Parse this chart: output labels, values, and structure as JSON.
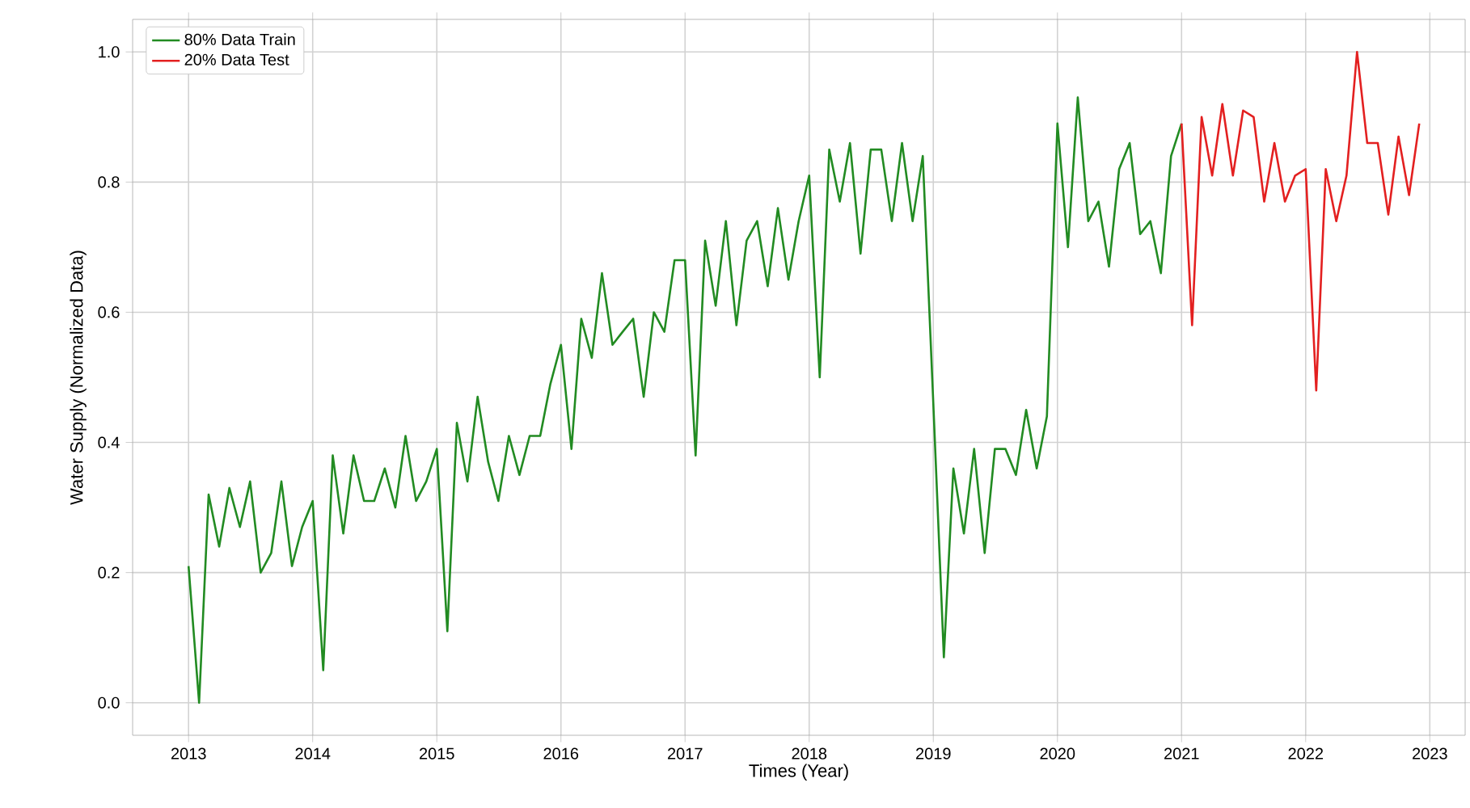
{
  "chart_data": {
    "type": "line",
    "xlabel": "Times (Year)",
    "ylabel": "Water Supply (Normalized Data)",
    "xlim": [
      "2012-07-20",
      "2023-04-15"
    ],
    "ylim": [
      -0.05,
      1.05
    ],
    "xticks": [
      {
        "value": "2013",
        "label": "2013"
      },
      {
        "value": "2014",
        "label": "2014"
      },
      {
        "value": "2015",
        "label": "2015"
      },
      {
        "value": "2016",
        "label": "2016"
      },
      {
        "value": "2017",
        "label": "2017"
      },
      {
        "value": "2018",
        "label": "2018"
      },
      {
        "value": "2019",
        "label": "2019"
      },
      {
        "value": "2020",
        "label": "2020"
      },
      {
        "value": "2021",
        "label": "2021"
      },
      {
        "value": "2022",
        "label": "2022"
      },
      {
        "value": "2023",
        "label": "2023"
      }
    ],
    "yticks": [
      {
        "value": 0,
        "label": "0.0"
      },
      {
        "value": 0.2,
        "label": "0.2"
      },
      {
        "value": 0.4,
        "label": "0.4"
      },
      {
        "value": 0.6,
        "label": "0.6"
      },
      {
        "value": 0.8,
        "label": "0.8"
      },
      {
        "value": 1,
        "label": "1.0"
      }
    ],
    "grid": true,
    "legend": "top left",
    "series": [
      {
        "name": "80% Data Train",
        "color": "#228b22",
        "x": [
          "2013-01",
          "2013-02",
          "2013-03",
          "2013-04",
          "2013-05",
          "2013-06",
          "2013-07",
          "2013-08",
          "2013-09",
          "2013-10",
          "2013-11",
          "2013-12",
          "2014-01",
          "2014-02",
          "2014-03",
          "2014-04",
          "2014-05",
          "2014-06",
          "2014-07",
          "2014-08",
          "2014-09",
          "2014-10",
          "2014-11",
          "2014-12",
          "2015-01",
          "2015-02",
          "2015-03",
          "2015-04",
          "2015-05",
          "2015-06",
          "2015-07",
          "2015-08",
          "2015-09",
          "2015-10",
          "2015-11",
          "2015-12",
          "2016-01",
          "2016-02",
          "2016-03",
          "2016-04",
          "2016-05",
          "2016-06",
          "2016-07",
          "2016-08",
          "2016-09",
          "2016-10",
          "2016-11",
          "2016-12",
          "2017-01",
          "2017-02",
          "2017-03",
          "2017-04",
          "2017-05",
          "2017-06",
          "2017-07",
          "2017-08",
          "2017-09",
          "2017-10",
          "2017-11",
          "2017-12",
          "2018-01",
          "2018-02",
          "2018-03",
          "2018-04",
          "2018-05",
          "2018-06",
          "2018-07",
          "2018-08",
          "2018-09",
          "2018-10",
          "2018-11",
          "2018-12",
          "2019-01",
          "2019-02",
          "2019-03",
          "2019-04",
          "2019-05",
          "2019-06",
          "2019-07",
          "2019-08",
          "2019-09",
          "2019-10",
          "2019-11",
          "2019-12",
          "2020-01",
          "2020-02",
          "2020-03",
          "2020-04",
          "2020-05",
          "2020-06",
          "2020-07",
          "2020-08",
          "2020-09",
          "2020-10",
          "2020-11",
          "2020-12",
          "2021-01"
        ],
        "values": [
          0.21,
          0.0,
          0.32,
          0.24,
          0.33,
          0.27,
          0.34,
          0.2,
          0.23,
          0.34,
          0.21,
          0.27,
          0.31,
          0.05,
          0.38,
          0.26,
          0.38,
          0.31,
          0.31,
          0.36,
          0.3,
          0.41,
          0.31,
          0.34,
          0.39,
          0.11,
          0.43,
          0.34,
          0.47,
          0.37,
          0.31,
          0.41,
          0.35,
          0.41,
          0.41,
          0.49,
          0.55,
          0.39,
          0.59,
          0.53,
          0.66,
          0.55,
          0.57,
          0.59,
          0.47,
          0.6,
          0.57,
          0.68,
          0.68,
          0.38,
          0.71,
          0.61,
          0.74,
          0.58,
          0.71,
          0.74,
          0.64,
          0.76,
          0.65,
          0.74,
          0.81,
          0.5,
          0.85,
          0.77,
          0.86,
          0.69,
          0.85,
          0.85,
          0.74,
          0.86,
          0.74,
          0.84,
          0.46,
          0.07,
          0.36,
          0.26,
          0.39,
          0.23,
          0.39,
          0.39,
          0.35,
          0.45,
          0.36,
          0.44,
          0.89,
          0.7,
          0.93,
          0.74,
          0.77,
          0.67,
          0.82,
          0.86,
          0.72,
          0.74,
          0.66,
          0.84,
          0.89
        ]
      },
      {
        "name": "20% Data Test",
        "color": "#e32020",
        "x": [
          "2021-01",
          "2021-02",
          "2021-03",
          "2021-04",
          "2021-05",
          "2021-06",
          "2021-07",
          "2021-08",
          "2021-09",
          "2021-10",
          "2021-11",
          "2021-12",
          "2022-01",
          "2022-02",
          "2022-03",
          "2022-04",
          "2022-05",
          "2022-06",
          "2022-07",
          "2022-08",
          "2022-09",
          "2022-10",
          "2022-11",
          "2022-12"
        ],
        "values": [
          0.89,
          0.58,
          0.9,
          0.81,
          0.92,
          0.81,
          0.91,
          0.9,
          0.77,
          0.86,
          0.77,
          0.81,
          0.82,
          0.48,
          0.82,
          0.74,
          0.81,
          1.0,
          0.86,
          0.86,
          0.75,
          0.87,
          0.78,
          0.89
        ]
      }
    ]
  }
}
